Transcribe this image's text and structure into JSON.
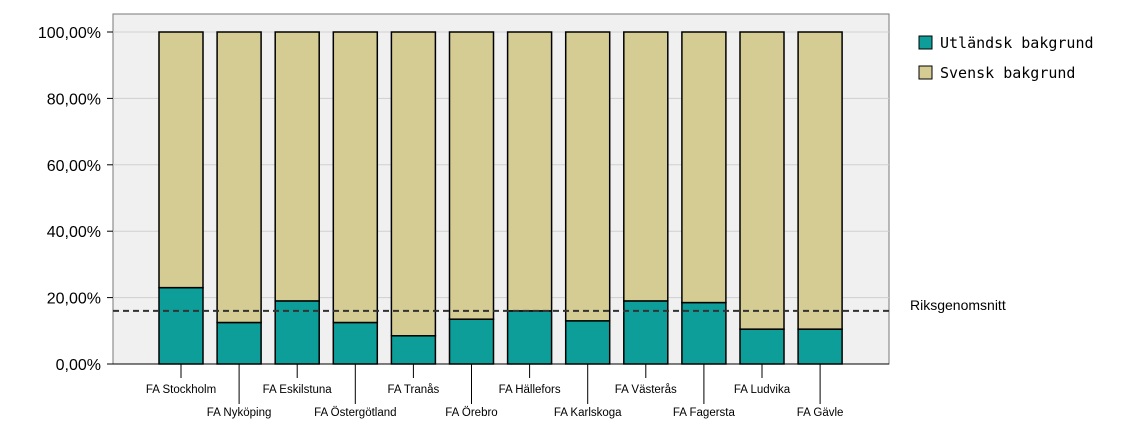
{
  "chart_data": {
    "type": "bar",
    "stacked": true,
    "categories": [
      "FA Stockholm",
      "FA Nyköping",
      "FA Eskilstuna",
      "FA Östergötland",
      "FA Tranås",
      "FA Örebro",
      "FA Hällefors",
      "FA Karlskoga",
      "FA Västerås",
      "FA Fagersta",
      "FA Ludvika",
      "FA Gävle"
    ],
    "series": [
      {
        "name": "Utländsk bakgrund",
        "color": "#0e9e9a",
        "values": [
          23.0,
          12.5,
          19.0,
          12.5,
          8.5,
          13.5,
          16.0,
          13.0,
          19.0,
          18.5,
          10.5,
          10.5
        ]
      },
      {
        "name": "Svensk bakgrund",
        "color": "#d4cc93",
        "values": [
          77.0,
          87.5,
          81.0,
          87.5,
          91.5,
          86.5,
          84.0,
          87.0,
          81.0,
          81.5,
          89.5,
          89.5
        ]
      }
    ],
    "reference_line": {
      "label": "Riksgenomsnitt",
      "value": 16.0
    },
    "y_ticks": [
      "0,00%",
      "20,00%",
      "40,00%",
      "60,00%",
      "80,00%",
      "100,00%"
    ],
    "ylim": [
      0,
      100
    ],
    "grid": true,
    "legend_position": "top-right",
    "plot_background": "#f0f0f0"
  }
}
